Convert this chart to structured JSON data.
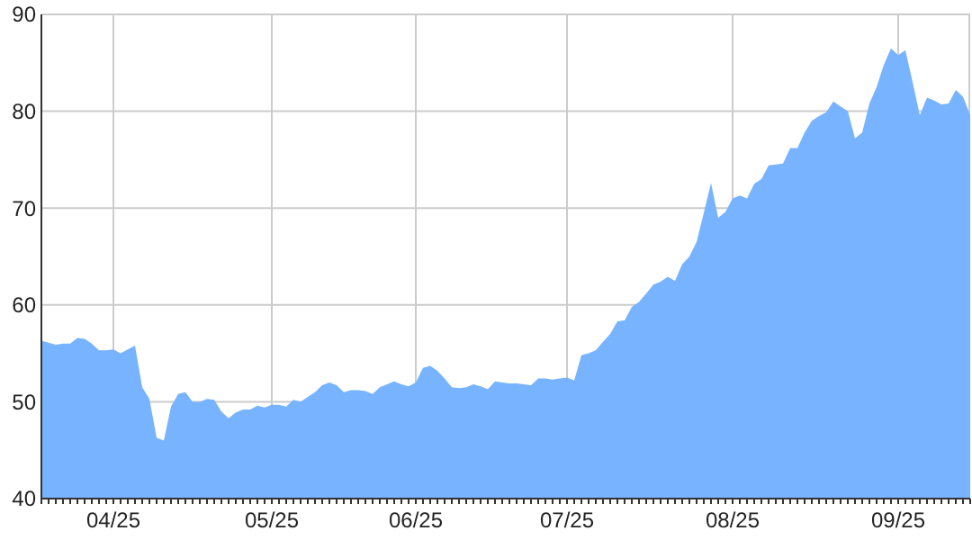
{
  "chart_data": {
    "type": "area",
    "categories": [
      null,
      null,
      null,
      null,
      null,
      null,
      null,
      null,
      null,
      null,
      "04/25",
      null,
      null,
      null,
      null,
      null,
      null,
      null,
      null,
      null,
      null,
      null,
      null,
      null,
      null,
      null,
      null,
      null,
      null,
      null,
      null,
      null,
      "05/25",
      null,
      null,
      null,
      null,
      null,
      null,
      null,
      null,
      null,
      null,
      null,
      null,
      null,
      null,
      null,
      null,
      null,
      null,
      null,
      "06/25",
      null,
      null,
      null,
      null,
      null,
      null,
      null,
      null,
      null,
      null,
      null,
      null,
      null,
      null,
      null,
      null,
      null,
      null,
      null,
      null,
      "07/25",
      null,
      null,
      null,
      null,
      null,
      null,
      null,
      null,
      null,
      null,
      null,
      null,
      null,
      null,
      null,
      null,
      null,
      null,
      null,
      null,
      null,
      null,
      "08/25",
      null,
      null,
      null,
      null,
      null,
      null,
      null,
      null,
      null,
      null,
      null,
      null,
      null,
      null,
      null,
      null,
      null,
      null,
      null,
      null,
      null,
      null,
      "09/25",
      null,
      null,
      null,
      null,
      null,
      null,
      null,
      null,
      null,
      null
    ],
    "series": [
      {
        "color": "#78b3ff",
        "values": [
          56.3,
          56.1,
          55.9,
          56.0,
          56.0,
          56.6,
          56.5,
          56.0,
          55.3,
          55.3,
          55.4,
          55.0,
          55.4,
          55.8,
          51.5,
          50.3,
          46.3,
          46.0,
          49.5,
          50.8,
          51.0,
          50.0,
          50.0,
          50.3,
          50.2,
          49.0,
          48.3,
          48.9,
          49.2,
          49.2,
          49.6,
          49.4,
          49.7,
          49.7,
          49.5,
          50.2,
          50.0,
          50.5,
          51.0,
          51.7,
          52.0,
          51.7,
          51.0,
          51.2,
          51.2,
          51.1,
          50.8,
          51.5,
          51.8,
          52.1,
          51.8,
          51.6,
          52.0,
          53.5,
          53.7,
          53.2,
          52.4,
          51.5,
          51.4,
          51.5,
          51.8,
          51.6,
          51.3,
          52.1,
          52.0,
          51.9,
          51.9,
          51.8,
          51.7,
          52.4,
          52.4,
          52.3,
          52.4,
          52.5,
          52.2,
          54.8,
          55.0,
          55.3,
          56.2,
          57.0,
          58.3,
          58.4,
          59.8,
          60.3,
          61.2,
          62.1,
          62.4,
          62.9,
          62.5,
          64.2,
          65.0,
          66.5,
          69.5,
          72.6,
          69.0,
          69.6,
          71.0,
          71.3,
          71.0,
          72.5,
          73.0,
          74.4,
          74.5,
          74.6,
          76.2,
          76.2,
          77.8,
          79.0,
          79.5,
          79.9,
          81.0,
          80.5,
          80.0,
          77.2,
          77.8,
          80.8,
          82.5,
          84.8,
          86.5,
          85.8,
          86.3,
          83.0,
          79.6,
          81.4,
          81.1,
          80.7,
          80.8,
          82.2,
          81.5,
          79.6
        ]
      }
    ],
    "ylim": [
      40,
      90
    ],
    "yticks": [
      40,
      50,
      60,
      70,
      80,
      90
    ],
    "grid": true
  }
}
